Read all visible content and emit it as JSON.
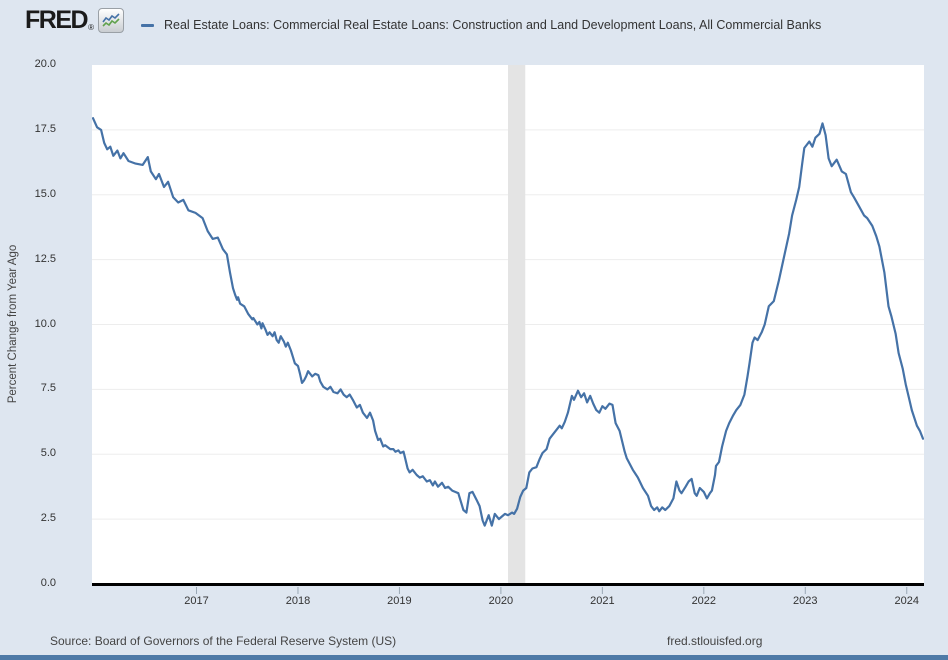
{
  "header": {
    "logo_text": "FRED",
    "logo_reg": "®"
  },
  "legend": {
    "series_label": "Real Estate Loans: Commercial Real Estate Loans: Construction and Land Development Loans, All Commercial Banks"
  },
  "y_axis": {
    "title": "Percent Change from Year Ago",
    "tick_labels": [
      "20.0",
      "17.5",
      "15.0",
      "12.5",
      "10.0",
      "7.5",
      "5.0",
      "2.5",
      "0.0"
    ]
  },
  "x_axis": {
    "tick_labels": [
      "2017",
      "2018",
      "2019",
      "2020",
      "2021",
      "2022",
      "2023",
      "2024"
    ]
  },
  "footer": {
    "source": "Source: Board of Governors of the Federal Reserve System (US)",
    "site": "fred.stlouisfed.org"
  },
  "colors": {
    "page_background": "#dee6f0",
    "plot_background": "#ffffff",
    "gridline": "#ededed",
    "recession_band": "#e4e4e4",
    "series_line": "#4572a7",
    "axis_line": "#000000",
    "tick_mark": "#9aa8b5",
    "bottom_bar": "#4e7aa7"
  },
  "chart_data": {
    "type": "line",
    "title": "Real Estate Loans: Commercial Real Estate Loans: Construction and Land Development Loans, All Commercial Banks",
    "xlabel": "",
    "ylabel": "Percent Change from Year Ago",
    "x_unit": "decimal_year",
    "xlim": [
      2015.97,
      2024.17
    ],
    "ylim": [
      0,
      20
    ],
    "y_tick_step": 2.5,
    "x_ticks": [
      2017,
      2018,
      2019,
      2020,
      2021,
      2022,
      2023,
      2024
    ],
    "grid": "horizontal",
    "legend_position": "top",
    "recession_shading": [
      {
        "start": 2020.07,
        "end": 2020.24
      }
    ],
    "series": [
      {
        "name": "Real Estate Loans: Commercial Real Estate Loans: Construction and Land Development Loans, All Commercial Banks",
        "color": "#4572a7",
        "points": [
          [
            2015.98,
            17.95
          ],
          [
            2016.02,
            17.6
          ],
          [
            2016.06,
            17.5
          ],
          [
            2016.09,
            17.0
          ],
          [
            2016.12,
            16.75
          ],
          [
            2016.15,
            16.85
          ],
          [
            2016.18,
            16.5
          ],
          [
            2016.22,
            16.7
          ],
          [
            2016.25,
            16.4
          ],
          [
            2016.28,
            16.6
          ],
          [
            2016.33,
            16.3
          ],
          [
            2016.4,
            16.2
          ],
          [
            2016.47,
            16.15
          ],
          [
            2016.52,
            16.45
          ],
          [
            2016.55,
            15.9
          ],
          [
            2016.6,
            15.6
          ],
          [
            2016.63,
            15.8
          ],
          [
            2016.68,
            15.3
          ],
          [
            2016.72,
            15.5
          ],
          [
            2016.77,
            14.9
          ],
          [
            2016.82,
            14.7
          ],
          [
            2016.87,
            14.8
          ],
          [
            2016.92,
            14.4
          ],
          [
            2016.99,
            14.3
          ],
          [
            2017.06,
            14.1
          ],
          [
            2017.11,
            13.6
          ],
          [
            2017.16,
            13.3
          ],
          [
            2017.21,
            13.35
          ],
          [
            2017.26,
            12.9
          ],
          [
            2017.3,
            12.7
          ],
          [
            2017.33,
            12.0
          ],
          [
            2017.36,
            11.4
          ],
          [
            2017.38,
            11.15
          ],
          [
            2017.4,
            10.95
          ],
          [
            2017.41,
            11.05
          ],
          [
            2017.43,
            10.8
          ],
          [
            2017.47,
            10.7
          ],
          [
            2017.51,
            10.4
          ],
          [
            2017.55,
            10.2
          ],
          [
            2017.56,
            10.25
          ],
          [
            2017.6,
            10.0
          ],
          [
            2017.62,
            10.1
          ],
          [
            2017.64,
            9.85
          ],
          [
            2017.65,
            10.05
          ],
          [
            2017.68,
            9.8
          ],
          [
            2017.7,
            9.6
          ],
          [
            2017.72,
            9.7
          ],
          [
            2017.75,
            9.55
          ],
          [
            2017.77,
            9.7
          ],
          [
            2017.79,
            9.4
          ],
          [
            2017.81,
            9.3
          ],
          [
            2017.83,
            9.55
          ],
          [
            2017.86,
            9.35
          ],
          [
            2017.88,
            9.15
          ],
          [
            2017.9,
            9.3
          ],
          [
            2017.93,
            9.0
          ],
          [
            2017.95,
            8.75
          ],
          [
            2017.97,
            8.5
          ],
          [
            2018.0,
            8.4
          ],
          [
            2018.02,
            8.1
          ],
          [
            2018.04,
            7.75
          ],
          [
            2018.06,
            7.85
          ],
          [
            2018.08,
            8.0
          ],
          [
            2018.1,
            8.2
          ],
          [
            2018.14,
            8.0
          ],
          [
            2018.17,
            8.1
          ],
          [
            2018.2,
            8.05
          ],
          [
            2018.22,
            7.8
          ],
          [
            2018.25,
            7.6
          ],
          [
            2018.29,
            7.5
          ],
          [
            2018.32,
            7.6
          ],
          [
            2018.35,
            7.4
          ],
          [
            2018.39,
            7.35
          ],
          [
            2018.42,
            7.5
          ],
          [
            2018.45,
            7.3
          ],
          [
            2018.48,
            7.2
          ],
          [
            2018.51,
            7.3
          ],
          [
            2018.54,
            7.1
          ],
          [
            2018.58,
            6.8
          ],
          [
            2018.61,
            6.9
          ],
          [
            2018.64,
            6.6
          ],
          [
            2018.68,
            6.4
          ],
          [
            2018.71,
            6.6
          ],
          [
            2018.74,
            6.3
          ],
          [
            2018.76,
            5.9
          ],
          [
            2018.79,
            5.55
          ],
          [
            2018.81,
            5.6
          ],
          [
            2018.84,
            5.3
          ],
          [
            2018.86,
            5.35
          ],
          [
            2018.91,
            5.2
          ],
          [
            2018.94,
            5.2
          ],
          [
            2018.96,
            5.1
          ],
          [
            2018.99,
            5.15
          ],
          [
            2019.01,
            5.05
          ],
          [
            2019.04,
            5.1
          ],
          [
            2019.05,
            4.95
          ],
          [
            2019.08,
            4.45
          ],
          [
            2019.1,
            4.3
          ],
          [
            2019.13,
            4.4
          ],
          [
            2019.17,
            4.2
          ],
          [
            2019.2,
            4.1
          ],
          [
            2019.23,
            4.15
          ],
          [
            2019.27,
            3.95
          ],
          [
            2019.3,
            4.0
          ],
          [
            2019.33,
            3.8
          ],
          [
            2019.35,
            3.95
          ],
          [
            2019.38,
            3.75
          ],
          [
            2019.42,
            3.9
          ],
          [
            2019.45,
            3.7
          ],
          [
            2019.48,
            3.75
          ],
          [
            2019.52,
            3.6
          ],
          [
            2019.55,
            3.55
          ],
          [
            2019.58,
            3.5
          ],
          [
            2019.63,
            2.85
          ],
          [
            2019.66,
            2.75
          ],
          [
            2019.69,
            3.5
          ],
          [
            2019.72,
            3.55
          ],
          [
            2019.76,
            3.25
          ],
          [
            2019.79,
            3.0
          ],
          [
            2019.82,
            2.45
          ],
          [
            2019.84,
            2.25
          ],
          [
            2019.88,
            2.65
          ],
          [
            2019.91,
            2.25
          ],
          [
            2019.94,
            2.7
          ],
          [
            2019.98,
            2.5
          ],
          [
            2020.01,
            2.6
          ],
          [
            2020.04,
            2.7
          ],
          [
            2020.07,
            2.65
          ],
          [
            2020.11,
            2.75
          ],
          [
            2020.13,
            2.7
          ],
          [
            2020.16,
            2.9
          ],
          [
            2020.19,
            3.35
          ],
          [
            2020.22,
            3.6
          ],
          [
            2020.25,
            3.7
          ],
          [
            2020.28,
            4.3
          ],
          [
            2020.31,
            4.45
          ],
          [
            2020.35,
            4.5
          ],
          [
            2020.38,
            4.8
          ],
          [
            2020.41,
            5.05
          ],
          [
            2020.45,
            5.2
          ],
          [
            2020.48,
            5.6
          ],
          [
            2020.51,
            5.75
          ],
          [
            2020.55,
            5.95
          ],
          [
            2020.58,
            6.1
          ],
          [
            2020.6,
            6.0
          ],
          [
            2020.63,
            6.25
          ],
          [
            2020.66,
            6.6
          ],
          [
            2020.7,
            7.25
          ],
          [
            2020.72,
            7.1
          ],
          [
            2020.76,
            7.45
          ],
          [
            2020.79,
            7.2
          ],
          [
            2020.82,
            7.35
          ],
          [
            2020.85,
            7.0
          ],
          [
            2020.88,
            7.25
          ],
          [
            2020.91,
            6.95
          ],
          [
            2020.94,
            6.7
          ],
          [
            2020.97,
            6.6
          ],
          [
            2021.0,
            6.85
          ],
          [
            2021.03,
            6.75
          ],
          [
            2021.07,
            6.95
          ],
          [
            2021.1,
            6.9
          ],
          [
            2021.13,
            6.2
          ],
          [
            2021.17,
            5.9
          ],
          [
            2021.22,
            5.1
          ],
          [
            2021.24,
            4.85
          ],
          [
            2021.3,
            4.4
          ],
          [
            2021.35,
            4.1
          ],
          [
            2021.4,
            3.7
          ],
          [
            2021.45,
            3.4
          ],
          [
            2021.48,
            3.0
          ],
          [
            2021.51,
            2.85
          ],
          [
            2021.54,
            2.95
          ],
          [
            2021.56,
            2.8
          ],
          [
            2021.59,
            2.95
          ],
          [
            2021.62,
            2.85
          ],
          [
            2021.66,
            3.0
          ],
          [
            2021.7,
            3.3
          ],
          [
            2021.73,
            3.95
          ],
          [
            2021.76,
            3.6
          ],
          [
            2021.78,
            3.5
          ],
          [
            2021.82,
            3.75
          ],
          [
            2021.85,
            3.95
          ],
          [
            2021.88,
            4.05
          ],
          [
            2021.91,
            3.5
          ],
          [
            2021.93,
            3.4
          ],
          [
            2021.96,
            3.7
          ],
          [
            2022.0,
            3.55
          ],
          [
            2022.03,
            3.3
          ],
          [
            2022.06,
            3.5
          ],
          [
            2022.08,
            3.6
          ],
          [
            2022.11,
            4.2
          ],
          [
            2022.12,
            4.55
          ],
          [
            2022.15,
            4.7
          ],
          [
            2022.18,
            5.3
          ],
          [
            2022.22,
            5.9
          ],
          [
            2022.25,
            6.2
          ],
          [
            2022.29,
            6.5
          ],
          [
            2022.32,
            6.7
          ],
          [
            2022.36,
            6.9
          ],
          [
            2022.4,
            7.3
          ],
          [
            2022.43,
            8.0
          ],
          [
            2022.45,
            8.5
          ],
          [
            2022.48,
            9.3
          ],
          [
            2022.5,
            9.5
          ],
          [
            2022.53,
            9.4
          ],
          [
            2022.57,
            9.7
          ],
          [
            2022.6,
            10.0
          ],
          [
            2022.64,
            10.7
          ],
          [
            2022.69,
            10.9
          ],
          [
            2022.74,
            11.7
          ],
          [
            2022.79,
            12.6
          ],
          [
            2022.84,
            13.5
          ],
          [
            2022.87,
            14.2
          ],
          [
            2022.91,
            14.8
          ],
          [
            2022.94,
            15.3
          ],
          [
            2022.97,
            16.2
          ],
          [
            2022.99,
            16.8
          ],
          [
            2023.04,
            17.05
          ],
          [
            2023.07,
            16.85
          ],
          [
            2023.1,
            17.2
          ],
          [
            2023.14,
            17.35
          ],
          [
            2023.17,
            17.75
          ],
          [
            2023.2,
            17.3
          ],
          [
            2023.23,
            16.4
          ],
          [
            2023.26,
            16.1
          ],
          [
            2023.31,
            16.35
          ],
          [
            2023.36,
            15.9
          ],
          [
            2023.4,
            15.8
          ],
          [
            2023.45,
            15.1
          ],
          [
            2023.48,
            14.9
          ],
          [
            2023.53,
            14.55
          ],
          [
            2023.58,
            14.2
          ],
          [
            2023.61,
            14.1
          ],
          [
            2023.66,
            13.8
          ],
          [
            2023.7,
            13.4
          ],
          [
            2023.73,
            13.0
          ],
          [
            2023.78,
            12.0
          ],
          [
            2023.82,
            10.7
          ],
          [
            2023.85,
            10.3
          ],
          [
            2023.89,
            9.65
          ],
          [
            2023.92,
            8.9
          ],
          [
            2023.96,
            8.3
          ],
          [
            2023.99,
            7.7
          ],
          [
            2024.02,
            7.2
          ],
          [
            2024.05,
            6.7
          ],
          [
            2024.1,
            6.1
          ],
          [
            2024.13,
            5.9
          ],
          [
            2024.16,
            5.6
          ]
        ]
      }
    ]
  }
}
